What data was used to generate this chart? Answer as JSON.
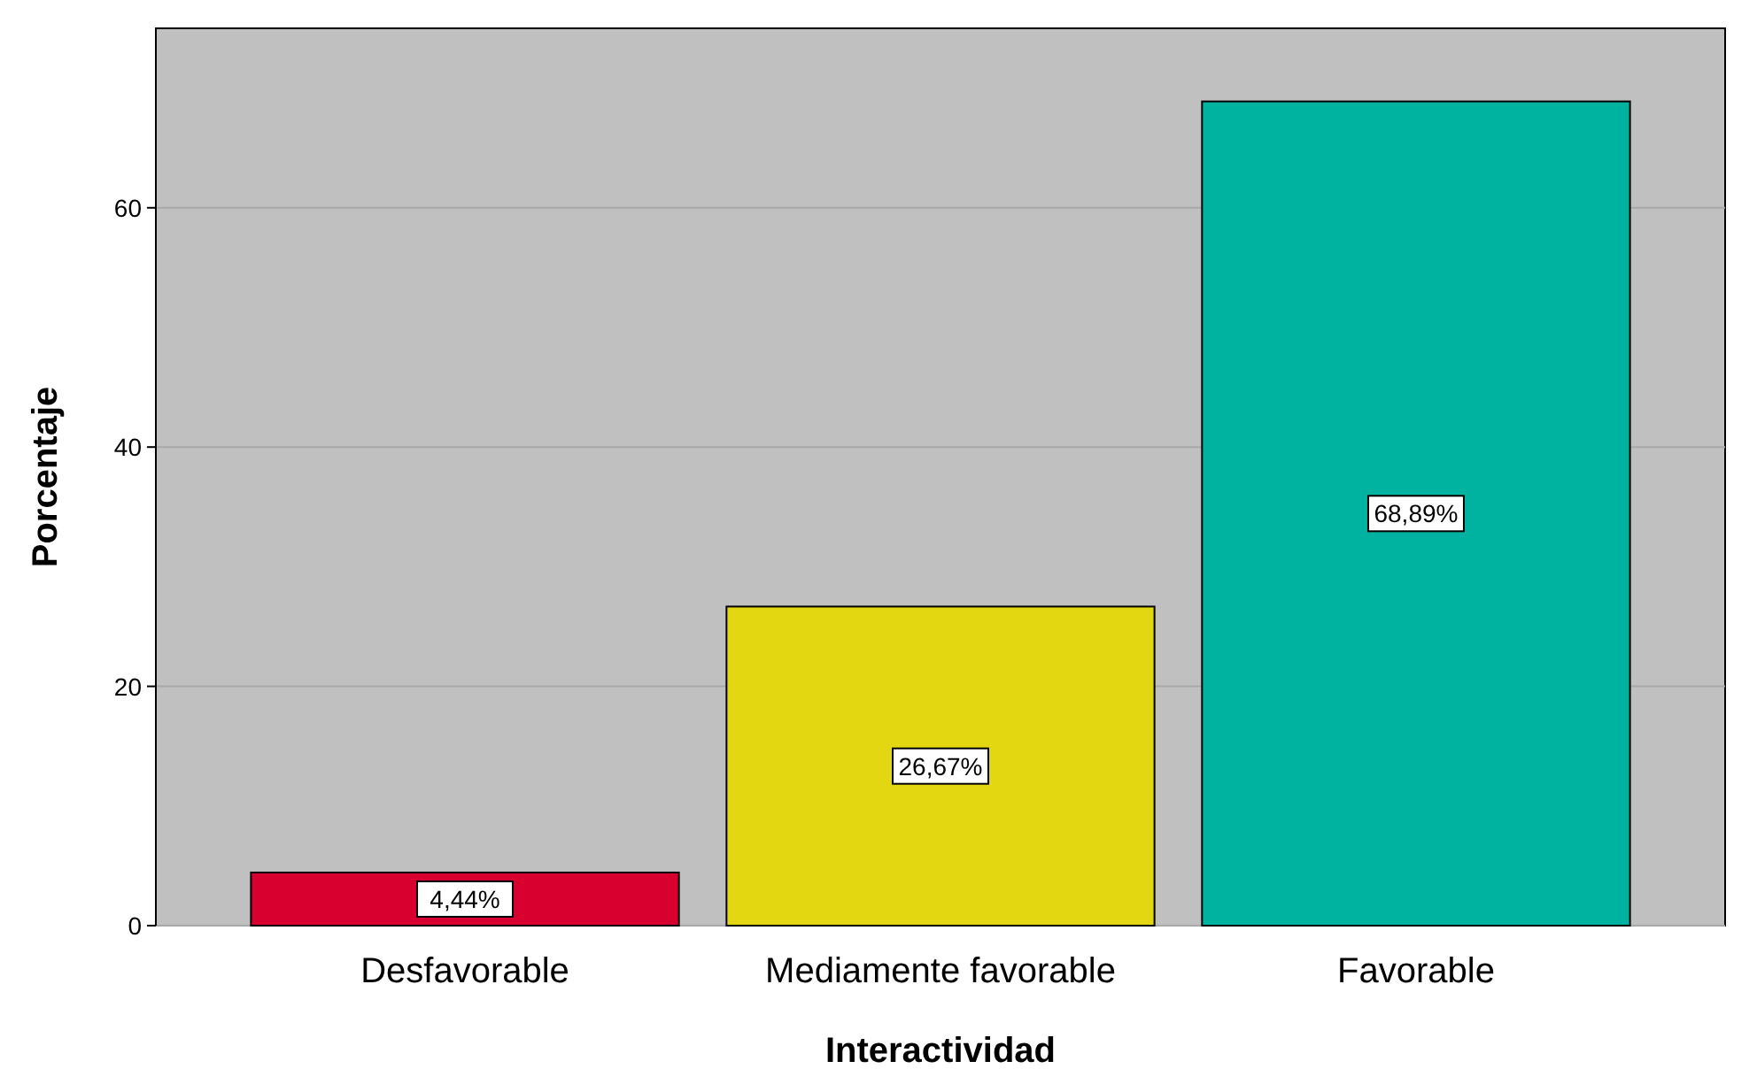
{
  "chart_data": {
    "type": "bar",
    "xlabel": "Interactividad",
    "ylabel": "Porcentaje",
    "categories": [
      "Desfavorable",
      "Mediamente favorable",
      "Favorable"
    ],
    "values": [
      4.44,
      26.67,
      68.89
    ],
    "colors": [
      "#d8002e",
      "#e3d712",
      "#00b3a0"
    ],
    "value_labels": [
      "4,44%",
      "26,67%",
      "68,89%"
    ],
    "ylim": [
      0,
      75
    ],
    "yticks": [
      0,
      20,
      40,
      60
    ],
    "grid": "y"
  }
}
